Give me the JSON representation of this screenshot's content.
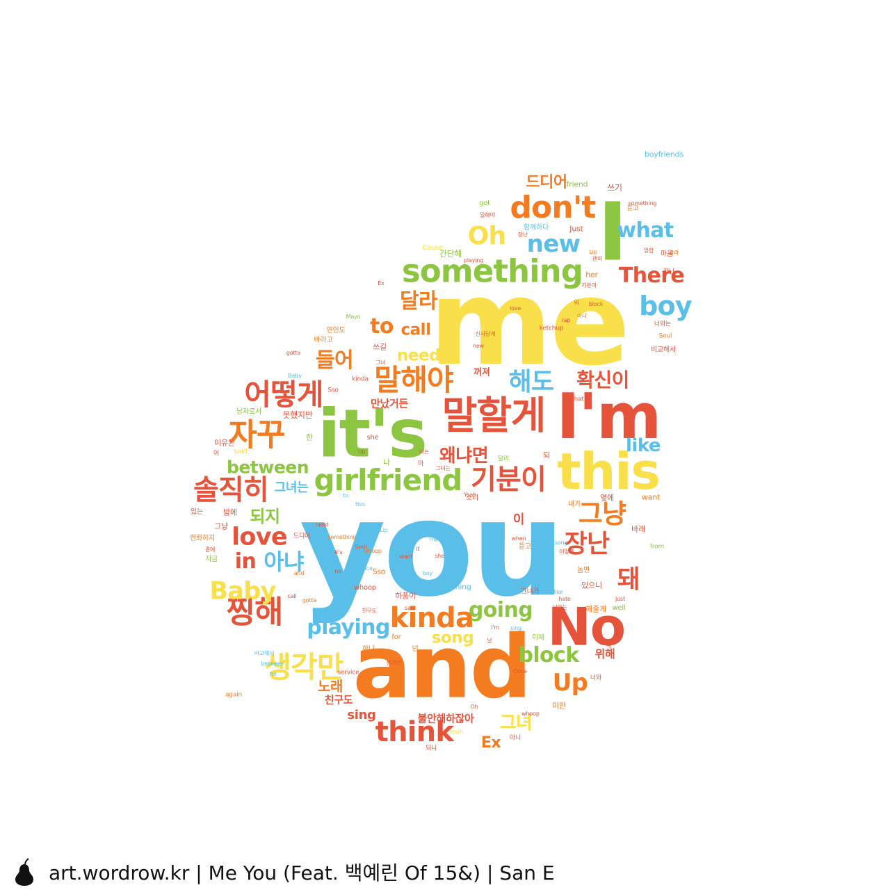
{
  "footer": {
    "logo": "pear-icon",
    "text": "art.wordrow.kr | Me You (Feat. 백예린 Of 15&) | San E"
  },
  "colors": {
    "yellow": "#f9e04a",
    "blue": "#59bfe9",
    "green": "#8cc540",
    "orange": "#f47b20",
    "red": "#e5543a",
    "text": "#111111"
  },
  "words": [
    {
      "text": "you",
      "color": "blue"
    },
    {
      "text": "me",
      "color": "yellow"
    },
    {
      "text": "and",
      "color": "orange"
    },
    {
      "text": "it's",
      "color": "green"
    },
    {
      "text": "I'm",
      "color": "red"
    },
    {
      "text": "I",
      "color": "green"
    },
    {
      "text": "this",
      "color": "yellow"
    },
    {
      "text": "No",
      "color": "red"
    },
    {
      "text": "말할게",
      "color": "red"
    },
    {
      "text": "something",
      "color": "green"
    },
    {
      "text": "don't",
      "color": "orange"
    },
    {
      "text": "말해야",
      "color": "orange"
    },
    {
      "text": "girlfriend",
      "color": "green"
    },
    {
      "text": "자꾸",
      "color": "orange"
    },
    {
      "text": "솔직히",
      "color": "red"
    },
    {
      "text": "생각만",
      "color": "yellow"
    },
    {
      "text": "찡해",
      "color": "red"
    },
    {
      "text": "Baby",
      "color": "yellow"
    },
    {
      "text": "kinda",
      "color": "orange"
    },
    {
      "text": "think",
      "color": "red"
    },
    {
      "text": "어떻게",
      "color": "red"
    },
    {
      "text": "기분이",
      "color": "red"
    },
    {
      "text": "그냥",
      "color": "orange"
    },
    {
      "text": "love",
      "color": "red"
    },
    {
      "text": "아냐",
      "color": "blue"
    },
    {
      "text": "장난",
      "color": "red"
    },
    {
      "text": "돼",
      "color": "red"
    },
    {
      "text": "해도",
      "color": "blue"
    },
    {
      "text": "확신이",
      "color": "red"
    },
    {
      "text": "new",
      "color": "blue"
    },
    {
      "text": "Oh",
      "color": "yellow"
    },
    {
      "text": "boy",
      "color": "blue"
    },
    {
      "text": "There",
      "color": "red"
    },
    {
      "text": "what",
      "color": "blue"
    },
    {
      "text": "playing",
      "color": "blue"
    },
    {
      "text": "block",
      "color": "green"
    },
    {
      "text": "Up",
      "color": "orange"
    },
    {
      "text": "between",
      "color": "green"
    },
    {
      "text": "to",
      "color": "orange"
    },
    {
      "text": "달라",
      "color": "orange"
    },
    {
      "text": "들어",
      "color": "orange"
    },
    {
      "text": "going",
      "color": "green"
    },
    {
      "text": "in",
      "color": "red"
    },
    {
      "text": "왜냐면",
      "color": "red"
    },
    {
      "text": "like",
      "color": "blue"
    },
    {
      "text": "song",
      "color": "yellow"
    },
    {
      "text": "need",
      "color": "yellow"
    },
    {
      "text": "call",
      "color": "orange"
    },
    {
      "text": "그녀",
      "color": "yellow"
    },
    {
      "text": "되지",
      "color": "green"
    },
    {
      "text": "드디어",
      "color": "orange"
    },
    {
      "text": "Ex",
      "color": "orange"
    },
    {
      "text": "sing",
      "color": "red"
    },
    {
      "text": "노래",
      "color": "orange"
    },
    {
      "text": "위해",
      "color": "red"
    },
    {
      "text": "그녀는",
      "color": "blue"
    },
    {
      "text": "만났거든",
      "color": "red"
    },
    {
      "text": "불안해하잖아",
      "color": "red"
    },
    {
      "text": "친구도",
      "color": "red"
    },
    {
      "text": "꺼져",
      "color": "red"
    },
    {
      "text": "이",
      "color": "red"
    },
    {
      "text": "쓰기",
      "color": "red"
    },
    {
      "text": "Just",
      "color": "red"
    },
    {
      "text": "boyfriends",
      "color": "blue"
    },
    {
      "text": "friend",
      "color": "green"
    },
    {
      "text": "함께하다",
      "color": "blue"
    },
    {
      "text": "her",
      "color": "orange"
    },
    {
      "text": "Cause",
      "color": "yellow"
    },
    {
      "text": "간단해",
      "color": "green"
    },
    {
      "text": "got",
      "color": "green"
    },
    {
      "text": "듣고",
      "color": "orange"
    },
    {
      "text": "마음",
      "color": "red"
    },
    {
      "text": "장난",
      "color": "red"
    },
    {
      "text": "쓰길",
      "color": "red"
    },
    {
      "text": "바라고",
      "color": "orange"
    },
    {
      "text": "연인도",
      "color": "orange"
    },
    {
      "text": "못했지만",
      "color": "red"
    },
    {
      "text": "남자로서",
      "color": "green"
    },
    {
      "text": "비교해서",
      "color": "red"
    },
    {
      "text": "Soul",
      "color": "orange"
    },
    {
      "text": "너와는",
      "color": "red"
    },
    {
      "text": "옆에",
      "color": "red"
    },
    {
      "text": "want",
      "color": "orange"
    },
    {
      "text": "바래",
      "color": "red"
    },
    {
      "text": "from",
      "color": "green"
    },
    {
      "text": "내가",
      "color": "orange"
    },
    {
      "text": "놈면",
      "color": "orange"
    },
    {
      "text": "있으니",
      "color": "red"
    },
    {
      "text": "그녀가",
      "color": "red"
    },
    {
      "text": "해줄게",
      "color": "orange"
    },
    {
      "text": "well",
      "color": "green"
    },
    {
      "text": "이제",
      "color": "green"
    },
    {
      "text": "너와",
      "color": "red"
    },
    {
      "text": "미안",
      "color": "orange"
    },
    {
      "text": "Yawning",
      "color": "blue"
    },
    {
      "text": "하품이",
      "color": "red"
    },
    {
      "text": "Sso",
      "color": "orange"
    },
    {
      "text": "whoop",
      "color": "red"
    },
    {
      "text": "for",
      "color": "orange"
    },
    {
      "text": "넌",
      "color": "orange"
    },
    {
      "text": "하냐",
      "color": "orange"
    },
    {
      "text": "듣고",
      "color": "orange"
    },
    {
      "text": "그냥",
      "color": "red"
    },
    {
      "text": "있는",
      "color": "red"
    },
    {
      "text": "밤에",
      "color": "red"
    },
    {
      "text": "지금",
      "color": "green"
    },
    {
      "text": "전화하지",
      "color": "orange"
    },
    {
      "text": "이유는",
      "color": "red"
    },
    {
      "text": "said",
      "color": "yellow"
    },
    {
      "text": "한",
      "color": "green"
    },
    {
      "text": "나",
      "color": "green"
    },
    {
      "text": "마",
      "color": "red"
    },
    {
      "text": "되",
      "color": "red"
    },
    {
      "text": "드디어",
      "color": "red"
    },
    {
      "text": "소리",
      "color": "red"
    },
    {
      "text": "어",
      "color": "red"
    },
    {
      "text": "she",
      "color": "red"
    },
    {
      "text": "되니",
      "color": "red"
    },
    {
      "text": "아니",
      "color": "red"
    },
    {
      "text": "Yeah",
      "color": "yellow"
    },
    {
      "text": "service",
      "color": "red"
    },
    {
      "text": "again",
      "color": "orange"
    },
    {
      "text": "달리",
      "color": "green"
    },
    {
      "text": "ketchup",
      "color": "red"
    },
    {
      "text": "Ex",
      "color": "red"
    },
    {
      "text": "Mayo",
      "color": "green"
    },
    {
      "text": "곁에",
      "color": "red"
    },
    {
      "text": "rap",
      "color": "red"
    },
    {
      "text": "말해야",
      "color": "red"
    },
    {
      "text": "Lip",
      "color": "orange"
    },
    {
      "text": "something",
      "color": "red"
    },
    {
      "text": "갈라",
      "color": "orange"
    },
    {
      "text": "엉합",
      "color": "red"
    },
    {
      "text": "아나",
      "color": "orange"
    },
    {
      "text": "뭐",
      "color": "red"
    },
    {
      "text": "playing",
      "color": "red"
    },
    {
      "text": "괜히",
      "color": "red"
    },
    {
      "text": "장난",
      "color": "red"
    },
    {
      "text": "기분이",
      "color": "red"
    },
    {
      "text": "신사답게",
      "color": "red"
    },
    {
      "text": "new",
      "color": "red"
    },
    {
      "text": "love",
      "color": "red"
    },
    {
      "text": "gotta",
      "color": "red"
    },
    {
      "text": "kinda",
      "color": "red"
    },
    {
      "text": "Sso",
      "color": "red"
    },
    {
      "text": "Baby",
      "color": "blue"
    },
    {
      "text": "그녀",
      "color": "red"
    },
    {
      "text": "block",
      "color": "red"
    },
    {
      "text": "that",
      "color": "red"
    },
    {
      "text": "to",
      "color": "blue"
    },
    {
      "text": "Up",
      "color": "red"
    },
    {
      "text": "call",
      "color": "red"
    },
    {
      "text": "너는",
      "color": "red"
    },
    {
      "text": "그녀는",
      "color": "red"
    },
    {
      "text": "Yeah",
      "color": "red"
    },
    {
      "text": "날",
      "color": "red"
    },
    {
      "text": "I'm",
      "color": "red"
    },
    {
      "text": "Ooce",
      "color": "red"
    },
    {
      "text": "Oh",
      "color": "red"
    },
    {
      "text": "sing",
      "color": "blue"
    },
    {
      "text": "hate",
      "color": "red"
    },
    {
      "text": "like",
      "color": "blue"
    },
    {
      "text": "딱",
      "color": "red"
    },
    {
      "text": "when",
      "color": "red"
    },
    {
      "text": "Just",
      "color": "red"
    },
    {
      "text": "whoop",
      "color": "red"
    },
    {
      "text": "너와는",
      "color": "red"
    },
    {
      "text": "어떻게",
      "color": "red"
    },
    {
      "text": "song",
      "color": "blue"
    },
    {
      "text": "between",
      "color": "blue"
    },
    {
      "text": "비교해서",
      "color": "blue"
    },
    {
      "text": "for",
      "color": "blue"
    },
    {
      "text": "친구도",
      "color": "red"
    },
    {
      "text": "생각만",
      "color": "red"
    },
    {
      "text": "me",
      "color": "blue"
    },
    {
      "text": "she",
      "color": "red"
    },
    {
      "text": "boy",
      "color": "blue"
    },
    {
      "text": "said",
      "color": "red"
    },
    {
      "text": "want",
      "color": "red"
    },
    {
      "text": "service",
      "color": "blue"
    },
    {
      "text": "Soul",
      "color": "red"
    },
    {
      "text": "Lip",
      "color": "blue"
    },
    {
      "text": "it",
      "color": "red"
    },
    {
      "text": "no",
      "color": "red"
    },
    {
      "text": "this",
      "color": "blue"
    },
    {
      "text": "and",
      "color": "orange"
    },
    {
      "text": "to",
      "color": "blue"
    },
    {
      "text": "whoop",
      "color": "orange"
    },
    {
      "text": "something",
      "color": "orange"
    },
    {
      "text": "gotta",
      "color": "orange"
    },
    {
      "text": "need",
      "color": "red"
    },
    {
      "text": "it's",
      "color": "red"
    },
    {
      "text": "Just",
      "color": "orange"
    },
    {
      "text": "again",
      "color": "orange"
    },
    {
      "text": "Ex",
      "color": "orange"
    },
    {
      "text": "Cause",
      "color": "orange"
    },
    {
      "text": "friend",
      "color": "orange"
    },
    {
      "text": "there",
      "color": "orange"
    },
    {
      "text": "think",
      "color": "orange"
    },
    {
      "text": "kinda",
      "color": "orange"
    }
  ]
}
